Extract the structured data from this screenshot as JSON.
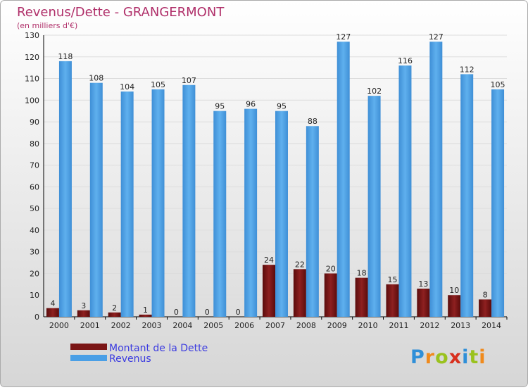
{
  "title": "Revenus/Dette - GRANGERMONT",
  "subtitle": "(en milliers d'€)",
  "logo_text": "Proxiti",
  "colors": {
    "title": "#b0306a",
    "legend_text": "#3a3ae0",
    "debt": "#7a1515",
    "revenue": "#4a9fe6",
    "grid": "#dddddd",
    "axis": "#000000"
  },
  "chart_data": {
    "type": "bar",
    "title": "Revenus/Dette - GRANGERMONT",
    "subtitle": "(en milliers d'€)",
    "categories": [
      "2000",
      "2001",
      "2002",
      "2003",
      "2004",
      "2005",
      "2006",
      "2007",
      "2008",
      "2009",
      "2010",
      "2011",
      "2012",
      "2013",
      "2014"
    ],
    "series": [
      {
        "name": "Montant de la Dette",
        "color": "#7a1515",
        "values": [
          4,
          3,
          2,
          1,
          0,
          0,
          0,
          24,
          22,
          20,
          18,
          15,
          13,
          10,
          8
        ]
      },
      {
        "name": "Revenus",
        "color": "#4a9fe6",
        "values": [
          118,
          108,
          104,
          105,
          107,
          95,
          96,
          95,
          88,
          127,
          102,
          116,
          127,
          112,
          105
        ]
      }
    ],
    "yticks": [
      0,
      10,
      20,
      30,
      40,
      50,
      60,
      70,
      80,
      90,
      100,
      110,
      120,
      130
    ],
    "ylim": [
      0,
      130
    ],
    "grid": true,
    "legend_position": "bottom-left"
  }
}
